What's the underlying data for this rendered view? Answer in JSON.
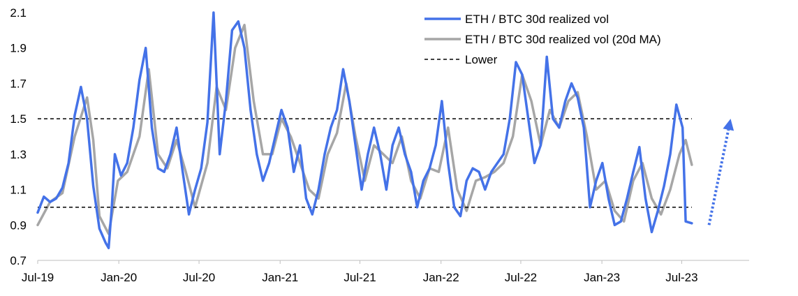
{
  "chart_data": {
    "type": "line",
    "title": "",
    "xlabel": "",
    "ylabel": "",
    "ylim": [
      0.7,
      2.1
    ],
    "yticks": [
      "0.7",
      "0.9",
      "1.1",
      "1.3",
      "1.5",
      "1.7",
      "1.9",
      "2.1"
    ],
    "xticks": [
      "Jul-19",
      "Jan-20",
      "Jul-20",
      "Jan-21",
      "Jul-21",
      "Jan-22",
      "Jul-22",
      "Jan-23",
      "Jul-23"
    ],
    "x_range": [
      "2019-07",
      "2023-12"
    ],
    "grid": false,
    "legend_position": "top-right",
    "series": [
      {
        "name": "ETH / BTC 30d realized vol",
        "color": "#4472E8",
        "style": "solid",
        "points": [
          [
            "2019-07-01",
            0.97
          ],
          [
            "2019-07-15",
            1.06
          ],
          [
            "2019-07-29",
            1.03
          ],
          [
            "2019-08-12",
            1.05
          ],
          [
            "2019-08-26",
            1.11
          ],
          [
            "2019-09-09",
            1.25
          ],
          [
            "2019-09-23",
            1.52
          ],
          [
            "2019-10-07",
            1.68
          ],
          [
            "2019-10-21",
            1.5
          ],
          [
            "2019-11-04",
            1.12
          ],
          [
            "2019-11-18",
            0.88
          ],
          [
            "2019-12-02",
            0.8
          ],
          [
            "2019-12-09",
            0.77
          ],
          [
            "2019-12-16",
            1.0
          ],
          [
            "2019-12-23",
            1.3
          ],
          [
            "2020-01-06",
            1.18
          ],
          [
            "2020-01-20",
            1.25
          ],
          [
            "2020-02-03",
            1.45
          ],
          [
            "2020-02-17",
            1.72
          ],
          [
            "2020-03-02",
            1.9
          ],
          [
            "2020-03-16",
            1.45
          ],
          [
            "2020-03-30",
            1.22
          ],
          [
            "2020-04-13",
            1.2
          ],
          [
            "2020-04-27",
            1.3
          ],
          [
            "2020-05-11",
            1.45
          ],
          [
            "2020-05-25",
            1.2
          ],
          [
            "2020-06-08",
            0.96
          ],
          [
            "2020-06-22",
            1.1
          ],
          [
            "2020-07-06",
            1.22
          ],
          [
            "2020-07-20",
            1.48
          ],
          [
            "2020-08-03",
            2.1
          ],
          [
            "2020-08-17",
            1.3
          ],
          [
            "2020-08-31",
            1.6
          ],
          [
            "2020-09-14",
            2.0
          ],
          [
            "2020-09-28",
            2.05
          ],
          [
            "2020-10-12",
            1.9
          ],
          [
            "2020-10-26",
            1.55
          ],
          [
            "2020-11-09",
            1.3
          ],
          [
            "2020-11-23",
            1.15
          ],
          [
            "2020-12-07",
            1.25
          ],
          [
            "2020-12-21",
            1.4
          ],
          [
            "2021-01-04",
            1.55
          ],
          [
            "2021-01-18",
            1.45
          ],
          [
            "2021-02-01",
            1.2
          ],
          [
            "2021-02-15",
            1.35
          ],
          [
            "2021-03-01",
            1.05
          ],
          [
            "2021-03-15",
            0.96
          ],
          [
            "2021-03-29",
            1.1
          ],
          [
            "2021-04-12",
            1.3
          ],
          [
            "2021-04-26",
            1.45
          ],
          [
            "2021-05-10",
            1.55
          ],
          [
            "2021-05-24",
            1.78
          ],
          [
            "2021-06-07",
            1.6
          ],
          [
            "2021-06-21",
            1.35
          ],
          [
            "2021-07-05",
            1.1
          ],
          [
            "2021-07-19",
            1.3
          ],
          [
            "2021-08-02",
            1.45
          ],
          [
            "2021-08-16",
            1.3
          ],
          [
            "2021-08-30",
            1.1
          ],
          [
            "2021-09-13",
            1.35
          ],
          [
            "2021-09-27",
            1.45
          ],
          [
            "2021-10-11",
            1.3
          ],
          [
            "2021-10-25",
            1.2
          ],
          [
            "2021-11-08",
            1.0
          ],
          [
            "2021-11-22",
            1.15
          ],
          [
            "2021-12-06",
            1.22
          ],
          [
            "2021-12-20",
            1.35
          ],
          [
            "2022-01-03",
            1.6
          ],
          [
            "2022-01-17",
            1.25
          ],
          [
            "2022-01-31",
            1.0
          ],
          [
            "2022-02-14",
            0.95
          ],
          [
            "2022-02-28",
            1.15
          ],
          [
            "2022-03-14",
            1.22
          ],
          [
            "2022-03-28",
            1.2
          ],
          [
            "2022-04-11",
            1.1
          ],
          [
            "2022-04-25",
            1.2
          ],
          [
            "2022-05-09",
            1.25
          ],
          [
            "2022-05-23",
            1.3
          ],
          [
            "2022-06-06",
            1.5
          ],
          [
            "2022-06-20",
            1.82
          ],
          [
            "2022-07-04",
            1.75
          ],
          [
            "2022-07-18",
            1.5
          ],
          [
            "2022-08-01",
            1.25
          ],
          [
            "2022-08-15",
            1.35
          ],
          [
            "2022-08-29",
            1.85
          ],
          [
            "2022-09-12",
            1.5
          ],
          [
            "2022-09-26",
            1.45
          ],
          [
            "2022-10-10",
            1.6
          ],
          [
            "2022-10-24",
            1.7
          ],
          [
            "2022-11-07",
            1.62
          ],
          [
            "2022-11-21",
            1.45
          ],
          [
            "2022-12-05",
            1.0
          ],
          [
            "2022-12-19",
            1.15
          ],
          [
            "2023-01-02",
            1.25
          ],
          [
            "2023-01-16",
            1.05
          ],
          [
            "2023-01-30",
            0.9
          ],
          [
            "2023-02-13",
            0.92
          ],
          [
            "2023-02-27",
            1.05
          ],
          [
            "2023-03-13",
            1.2
          ],
          [
            "2023-03-27",
            1.34
          ],
          [
            "2023-04-10",
            1.05
          ],
          [
            "2023-04-24",
            0.86
          ],
          [
            "2023-05-08",
            0.98
          ],
          [
            "2023-05-22",
            1.12
          ],
          [
            "2023-06-05",
            1.3
          ],
          [
            "2023-06-19",
            1.58
          ],
          [
            "2023-07-03",
            1.45
          ],
          [
            "2023-07-10",
            0.92
          ],
          [
            "2023-07-24",
            0.91
          ]
        ]
      },
      {
        "name": "ETH / BTC 30d realized vol (20d MA)",
        "color": "#A6A6A6",
        "style": "solid",
        "points": [
          [
            "2019-07-01",
            0.9
          ],
          [
            "2019-07-29",
            1.03
          ],
          [
            "2019-08-26",
            1.08
          ],
          [
            "2019-09-23",
            1.4
          ],
          [
            "2019-10-21",
            1.62
          ],
          [
            "2019-11-04",
            1.38
          ],
          [
            "2019-11-18",
            0.95
          ],
          [
            "2019-12-09",
            0.85
          ],
          [
            "2019-12-30",
            1.15
          ],
          [
            "2020-01-20",
            1.2
          ],
          [
            "2020-02-17",
            1.4
          ],
          [
            "2020-03-09",
            1.78
          ],
          [
            "2020-03-30",
            1.3
          ],
          [
            "2020-04-20",
            1.22
          ],
          [
            "2020-05-11",
            1.38
          ],
          [
            "2020-06-01",
            1.2
          ],
          [
            "2020-06-22",
            1.0
          ],
          [
            "2020-07-20",
            1.25
          ],
          [
            "2020-08-10",
            1.68
          ],
          [
            "2020-08-31",
            1.55
          ],
          [
            "2020-09-21",
            1.9
          ],
          [
            "2020-10-12",
            2.03
          ],
          [
            "2020-11-02",
            1.6
          ],
          [
            "2020-11-23",
            1.3
          ],
          [
            "2020-12-14",
            1.3
          ],
          [
            "2021-01-04",
            1.5
          ],
          [
            "2021-01-25",
            1.4
          ],
          [
            "2021-02-15",
            1.25
          ],
          [
            "2021-03-08",
            1.1
          ],
          [
            "2021-03-29",
            1.05
          ],
          [
            "2021-04-19",
            1.3
          ],
          [
            "2021-05-10",
            1.42
          ],
          [
            "2021-05-31",
            1.7
          ],
          [
            "2021-06-21",
            1.4
          ],
          [
            "2021-07-12",
            1.15
          ],
          [
            "2021-08-02",
            1.35
          ],
          [
            "2021-08-23",
            1.3
          ],
          [
            "2021-09-13",
            1.25
          ],
          [
            "2021-10-04",
            1.4
          ],
          [
            "2021-10-25",
            1.15
          ],
          [
            "2021-11-15",
            1.05
          ],
          [
            "2021-12-06",
            1.22
          ],
          [
            "2021-12-27",
            1.2
          ],
          [
            "2022-01-17",
            1.45
          ],
          [
            "2022-02-07",
            1.1
          ],
          [
            "2022-02-28",
            0.98
          ],
          [
            "2022-03-21",
            1.15
          ],
          [
            "2022-04-11",
            1.17
          ],
          [
            "2022-05-02",
            1.2
          ],
          [
            "2022-05-23",
            1.25
          ],
          [
            "2022-06-13",
            1.4
          ],
          [
            "2022-07-04",
            1.75
          ],
          [
            "2022-07-25",
            1.6
          ],
          [
            "2022-08-15",
            1.35
          ],
          [
            "2022-09-05",
            1.55
          ],
          [
            "2022-09-26",
            1.45
          ],
          [
            "2022-10-17",
            1.6
          ],
          [
            "2022-11-07",
            1.65
          ],
          [
            "2022-11-28",
            1.4
          ],
          [
            "2022-12-19",
            1.1
          ],
          [
            "2023-01-09",
            1.15
          ],
          [
            "2023-01-30",
            0.98
          ],
          [
            "2023-02-20",
            0.92
          ],
          [
            "2023-03-13",
            1.15
          ],
          [
            "2023-04-03",
            1.25
          ],
          [
            "2023-04-24",
            1.05
          ],
          [
            "2023-05-15",
            0.96
          ],
          [
            "2023-06-05",
            1.1
          ],
          [
            "2023-06-26",
            1.3
          ],
          [
            "2023-07-10",
            1.38
          ],
          [
            "2023-07-24",
            1.24
          ]
        ]
      },
      {
        "name": "Lower",
        "color": "#000000",
        "style": "dashed",
        "points": [
          [
            "2019-07-01",
            1.0
          ],
          [
            "2023-07-24",
            1.0
          ]
        ]
      }
    ],
    "reference_lines": [
      {
        "y": 1.5,
        "color": "#000000",
        "style": "dashed",
        "x_from": "2019-07-01",
        "x_to": "2023-07-24"
      }
    ],
    "annotations": [
      {
        "type": "dotted-arrow",
        "color": "#4472E8",
        "from": [
          "2023-09-01",
          0.9
        ],
        "to": [
          "2023-10-20",
          1.5
        ]
      }
    ]
  }
}
